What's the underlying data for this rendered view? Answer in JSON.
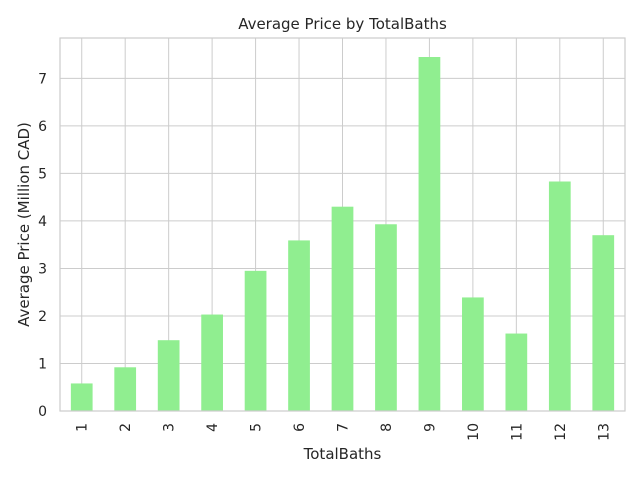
{
  "chart_data": {
    "type": "bar",
    "title": "Average Price by TotalBaths",
    "xlabel": "TotalBaths",
    "ylabel": "Average Price (Million CAD)",
    "categories": [
      "1",
      "2",
      "3",
      "4",
      "5",
      "6",
      "7",
      "8",
      "9",
      "10",
      "11",
      "12",
      "13"
    ],
    "values": [
      0.58,
      0.92,
      1.49,
      2.03,
      2.95,
      3.59,
      4.3,
      3.93,
      7.45,
      2.39,
      1.63,
      4.83,
      3.7
    ],
    "ylim": [
      0,
      7.85
    ],
    "yticks": [
      0,
      1,
      2,
      3,
      4,
      5,
      6,
      7
    ],
    "grid": true,
    "bar_color": "#90ee90"
  }
}
